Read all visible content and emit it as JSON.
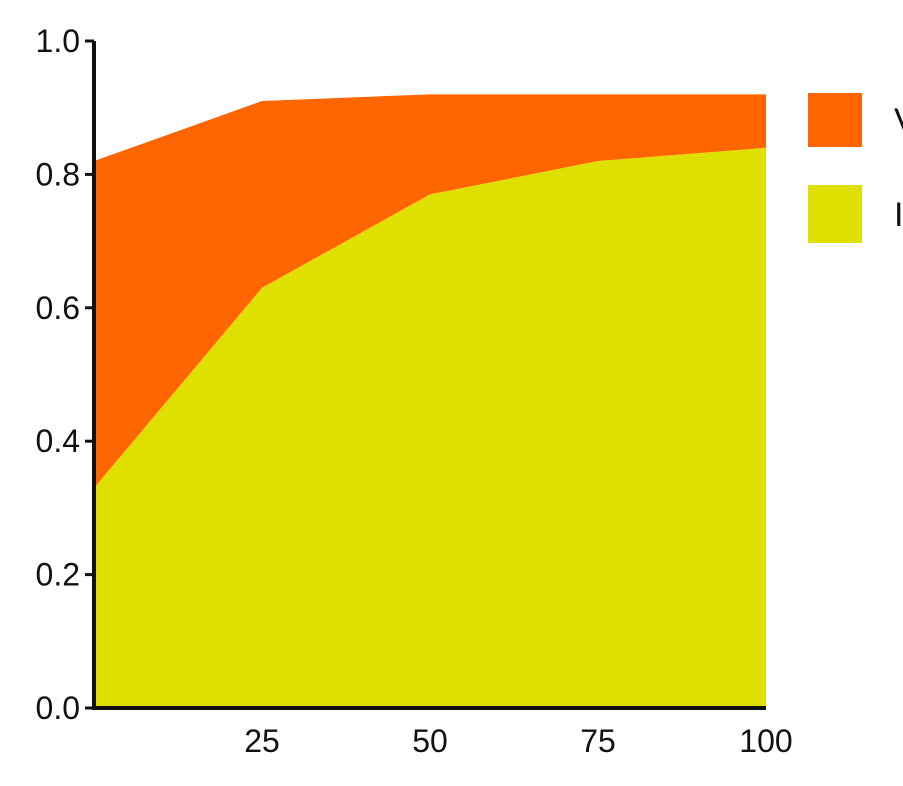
{
  "chart_data": {
    "type": "area",
    "stacked": true,
    "x": [
      0,
      25,
      50,
      75,
      100
    ],
    "x_tick_labels": [
      "25",
      "50",
      "75",
      "100"
    ],
    "x_ticks": [
      25,
      50,
      75,
      100
    ],
    "y_tick_labels": [
      "0.0",
      "0.2",
      "0.4",
      "0.6",
      "0.8",
      "1.0"
    ],
    "y_ticks": [
      0,
      0.2,
      0.4,
      0.6,
      0.8,
      1.0
    ],
    "xlim": [
      0,
      100
    ],
    "ylim": [
      0,
      1.0
    ],
    "grid": false,
    "legend_position": "right",
    "series": [
      {
        "values": [
          0.33,
          0.63,
          0.77,
          0.82,
          0.84
        ],
        "color": "#e0e000"
      },
      {
        "values": [
          0.49,
          0.28,
          0.15,
          0.1,
          0.08
        ],
        "color": "#ff6600"
      }
    ],
    "legend": [
      {
        "label": "V",
        "color": "#ff6600"
      },
      {
        "label": "I",
        "color": "#e0e000"
      }
    ],
    "title": "",
    "xlabel": "",
    "ylabel": ""
  }
}
